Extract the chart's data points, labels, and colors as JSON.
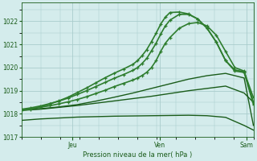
{
  "bg_color": "#d4ecec",
  "grid_color": "#aacccc",
  "line_color_dark": "#1a5c1a",
  "line_color_mid": "#2e7d2e",
  "ylabel": "Pression niveau de la mer( hPa )",
  "ylim": [
    1017,
    1022.8
  ],
  "yticks": [
    1017,
    1018,
    1019,
    1020,
    1021,
    1022
  ],
  "lines": [
    {
      "x": [
        0.0,
        0.08,
        0.16,
        0.24,
        0.32,
        0.4,
        0.48,
        0.56,
        0.64,
        0.72,
        0.8,
        0.88,
        0.96,
        1.0
      ],
      "y": [
        1017.72,
        1017.78,
        1017.82,
        1017.86,
        1017.88,
        1017.9,
        1017.91,
        1017.92,
        1017.93,
        1017.94,
        1017.92,
        1017.85,
        1017.5,
        1017.3
      ],
      "marker": false,
      "lw": 1.0
    },
    {
      "x": [
        0.0,
        0.08,
        0.16,
        0.24,
        0.32,
        0.4,
        0.48,
        0.56,
        0.64,
        0.72,
        0.8,
        0.88,
        0.96,
        1.0
      ],
      "y": [
        1018.15,
        1018.2,
        1018.28,
        1018.36,
        1018.46,
        1018.56,
        1018.66,
        1018.76,
        1018.88,
        1019.0,
        1019.1,
        1019.2,
        1018.9,
        1018.5
      ],
      "marker": false,
      "lw": 1.0
    },
    {
      "x": [
        0.0,
        0.08,
        0.16,
        0.24,
        0.32,
        0.4,
        0.48,
        0.56,
        0.64,
        0.72,
        0.8,
        0.88,
        0.96,
        1.0
      ],
      "y": [
        1018.18,
        1018.22,
        1018.3,
        1018.4,
        1018.55,
        1018.72,
        1018.9,
        1019.1,
        1019.3,
        1019.5,
        1019.65,
        1019.75,
        1019.55,
        1017.5
      ],
      "marker": false,
      "lw": 1.0
    },
    {
      "x": [
        0.0,
        0.04,
        0.08,
        0.12,
        0.16,
        0.2,
        0.24,
        0.28,
        0.32,
        0.36,
        0.4,
        0.44,
        0.48,
        0.5,
        0.52,
        0.54,
        0.56,
        0.58,
        0.6,
        0.62,
        0.64,
        0.68,
        0.72,
        0.76,
        0.8,
        0.84,
        0.88,
        0.92,
        0.96,
        1.0
      ],
      "y": [
        1018.18,
        1018.22,
        1018.28,
        1018.35,
        1018.43,
        1018.52,
        1018.62,
        1018.74,
        1018.88,
        1019.02,
        1019.18,
        1019.32,
        1019.46,
        1019.55,
        1019.66,
        1019.8,
        1020.0,
        1020.3,
        1020.7,
        1021.05,
        1021.3,
        1021.7,
        1021.9,
        1021.95,
        1021.8,
        1021.4,
        1020.7,
        1020.0,
        1019.85,
        1018.5
      ],
      "marker": true,
      "lw": 1.2
    },
    {
      "x": [
        0.0,
        0.04,
        0.08,
        0.12,
        0.16,
        0.2,
        0.24,
        0.28,
        0.32,
        0.36,
        0.4,
        0.44,
        0.48,
        0.5,
        0.52,
        0.54,
        0.56,
        0.58,
        0.6,
        0.62,
        0.64,
        0.68,
        0.72,
        0.76,
        0.8,
        0.84,
        0.88,
        0.92,
        0.96,
        1.0
      ],
      "y": [
        1018.2,
        1018.26,
        1018.34,
        1018.44,
        1018.55,
        1018.68,
        1018.84,
        1019.0,
        1019.18,
        1019.36,
        1019.54,
        1019.7,
        1019.88,
        1020.0,
        1020.18,
        1020.4,
        1020.72,
        1021.05,
        1021.45,
        1021.8,
        1022.05,
        1022.3,
        1022.3,
        1022.1,
        1021.7,
        1021.1,
        1020.3,
        1019.9,
        1019.82,
        1018.7
      ],
      "marker": true,
      "lw": 1.2
    },
    {
      "x": [
        0.0,
        0.04,
        0.08,
        0.12,
        0.16,
        0.2,
        0.24,
        0.28,
        0.32,
        0.36,
        0.4,
        0.44,
        0.48,
        0.5,
        0.52,
        0.54,
        0.56,
        0.58,
        0.6,
        0.62,
        0.64,
        0.68,
        0.72,
        0.76,
        0.8,
        0.84,
        0.88,
        0.92,
        0.96,
        1.0
      ],
      "y": [
        1018.15,
        1018.2,
        1018.3,
        1018.42,
        1018.56,
        1018.72,
        1018.92,
        1019.12,
        1019.34,
        1019.56,
        1019.76,
        1019.94,
        1020.14,
        1020.3,
        1020.52,
        1020.78,
        1021.12,
        1021.48,
        1021.88,
        1022.18,
        1022.38,
        1022.4,
        1022.32,
        1022.1,
        1021.7,
        1021.1,
        1020.3,
        1019.85,
        1019.79,
        1018.4
      ],
      "marker": true,
      "lw": 1.2
    }
  ],
  "xtick_positions": [
    0.22,
    0.595,
    0.97
  ],
  "xtick_labels": [
    "Jeu",
    "Ven",
    "Sam"
  ]
}
